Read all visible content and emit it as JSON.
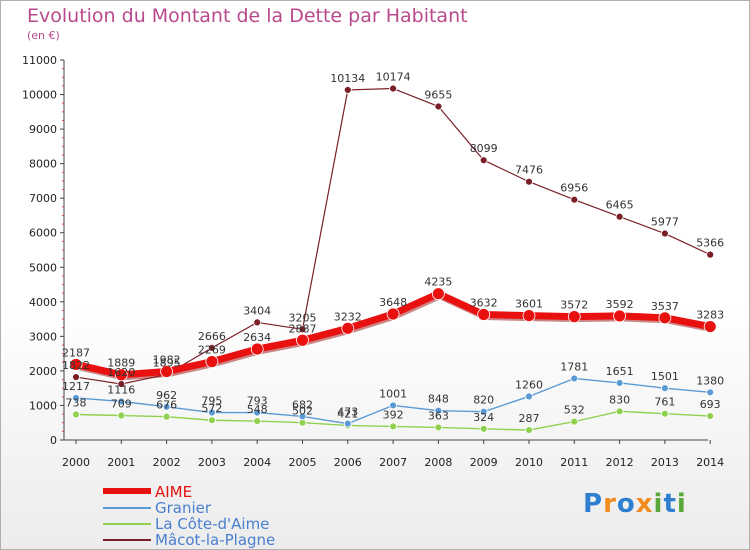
{
  "title": "Evolution du Montant de la Dette par Habitant",
  "subtitle": "(en €)",
  "logo": {
    "text": "Proxiti",
    "letters": [
      "P",
      "r",
      "o",
      "x",
      "i",
      "t",
      "i"
    ]
  },
  "chart_data": {
    "type": "line",
    "title": "Evolution du Montant de la Dette par Habitant",
    "subtitle": "(en €)",
    "x": [
      2000,
      2001,
      2002,
      2003,
      2004,
      2005,
      2006,
      2007,
      2008,
      2009,
      2010,
      2011,
      2012,
      2013,
      2014
    ],
    "ylim": [
      0,
      11000
    ],
    "yticks": [
      0,
      1000,
      2000,
      3000,
      4000,
      5000,
      6000,
      7000,
      8000,
      9000,
      10000,
      11000
    ],
    "grid": false,
    "legend": "bottom-left",
    "series": [
      {
        "name": "AIME",
        "color": "#e8110f",
        "values": [
          2187,
          1889,
          1982,
          2269,
          2634,
          2887,
          3232,
          3648,
          4235,
          3632,
          3601,
          3572,
          3592,
          3537,
          3283
        ]
      },
      {
        "name": "Granier",
        "color": "#5b9bd5",
        "values": [
          1217,
          1116,
          962,
          795,
          793,
          682,
          473,
          1001,
          848,
          820,
          1260,
          1781,
          1651,
          1501,
          1380
        ]
      },
      {
        "name": "La Côte-d'Aime",
        "color": "#8fd14f",
        "values": [
          738,
          709,
          676,
          572,
          548,
          502,
          421,
          392,
          363,
          324,
          287,
          532,
          830,
          761,
          693
        ]
      },
      {
        "name": "Mâcot-la-Plagne",
        "color": "#7b1f27",
        "values": [
          1822,
          1620,
          1895,
          2666,
          3404,
          3205,
          10134,
          10174,
          9655,
          8099,
          7476,
          6956,
          6465,
          5977,
          5366
        ]
      }
    ]
  }
}
